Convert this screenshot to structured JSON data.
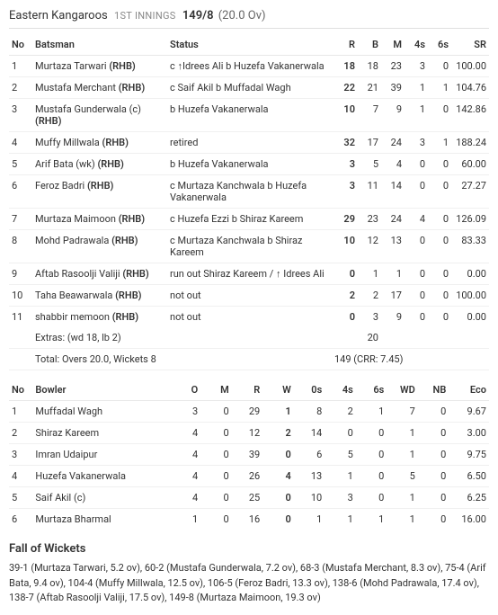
{
  "header": {
    "team": "Eastern Kangaroos",
    "innings_label": "1ST INNINGS",
    "score": "149/8",
    "overs": "(20.0 Ov)"
  },
  "batting": {
    "columns": [
      "No",
      "Batsman",
      "Status",
      "R",
      "B",
      "M",
      "4s",
      "6s",
      "SR"
    ],
    "rows": [
      {
        "no": "1",
        "name": "Murtaza Tarwari",
        "hand": "(RHB)",
        "status": "c ↑Idrees Ali b Huzefa Vakanerwala",
        "r": "18",
        "b": "18",
        "m": "23",
        "f4": "3",
        "f6": "0",
        "sr": "100.00"
      },
      {
        "no": "2",
        "name": "Mustafa Merchant",
        "hand": "(RHB)",
        "status": "c Saif Akil b Muffadal Wagh",
        "r": "22",
        "b": "21",
        "m": "39",
        "f4": "1",
        "f6": "1",
        "sr": "104.76"
      },
      {
        "no": "3",
        "name": "Mustafa Gunderwala (c)",
        "hand": "(RHB)",
        "status": "b Huzefa Vakanerwala",
        "r": "10",
        "b": "7",
        "m": "9",
        "f4": "1",
        "f6": "0",
        "sr": "142.86"
      },
      {
        "no": "4",
        "name": "Muffy Millwala",
        "hand": "(RHB)",
        "status": "retired",
        "r": "32",
        "b": "17",
        "m": "24",
        "f4": "3",
        "f6": "1",
        "sr": "188.24"
      },
      {
        "no": "5",
        "name": "Arif Bata (wk)",
        "hand": "(RHB)",
        "status": "b Huzefa Vakanerwala",
        "r": "3",
        "b": "5",
        "m": "4",
        "f4": "0",
        "f6": "0",
        "sr": "60.00"
      },
      {
        "no": "6",
        "name": "Feroz Badri",
        "hand": "(RHB)",
        "status": "c Murtaza Kanchwala b Huzefa Vakanerwala",
        "r": "3",
        "b": "11",
        "m": "14",
        "f4": "0",
        "f6": "0",
        "sr": "27.27"
      },
      {
        "no": "7",
        "name": "Murtaza Maimoon",
        "hand": "(RHB)",
        "status": "c Huzefa Ezzi b Shiraz Kareem",
        "r": "29",
        "b": "23",
        "m": "24",
        "f4": "4",
        "f6": "0",
        "sr": "126.09"
      },
      {
        "no": "8",
        "name": "Mohd Padrawala",
        "hand": "(RHB)",
        "status": "c Murtaza Kanchwala b Shiraz Kareem",
        "r": "10",
        "b": "12",
        "m": "13",
        "f4": "0",
        "f6": "0",
        "sr": "83.33"
      },
      {
        "no": "9",
        "name": "Aftab Rasoolji Valiji",
        "hand": "(RHB)",
        "status": "run out Shiraz Kareem / ↑ Idrees Ali",
        "r": "0",
        "b": "1",
        "m": "1",
        "f4": "0",
        "f6": "0",
        "sr": "0.00"
      },
      {
        "no": "10",
        "name": "Taha Beawarwala",
        "hand": "(RHB)",
        "status": "not out",
        "r": "2",
        "b": "2",
        "m": "17",
        "f4": "0",
        "f6": "0",
        "sr": "100.00"
      },
      {
        "no": "11",
        "name": "shabbir memoon",
        "hand": "(RHB)",
        "status": "not out",
        "r": "0",
        "b": "3",
        "m": "9",
        "f4": "0",
        "f6": "0",
        "sr": "0.00"
      }
    ],
    "extras_label": "Extras: (wd 18, lb 2)",
    "extras_value": "20",
    "total_label": "Total: Overs 20.0, Wickets 8",
    "total_value": "149 (CRR: 7.45)"
  },
  "bowling": {
    "columns": [
      "No",
      "Bowler",
      "O",
      "M",
      "R",
      "W",
      "0s",
      "4s",
      "6s",
      "WD",
      "NB",
      "Eco"
    ],
    "rows": [
      {
        "no": "1",
        "name": "Muffadal Wagh",
        "o": "3",
        "m": "0",
        "r": "29",
        "w": "1",
        "z": "8",
        "f4": "2",
        "f6": "1",
        "wd": "7",
        "nb": "0",
        "eco": "9.67"
      },
      {
        "no": "2",
        "name": "Shiraz Kareem",
        "o": "4",
        "m": "0",
        "r": "12",
        "w": "2",
        "z": "14",
        "f4": "0",
        "f6": "0",
        "wd": "1",
        "nb": "0",
        "eco": "3.00"
      },
      {
        "no": "3",
        "name": "Imran Udaipur",
        "o": "4",
        "m": "0",
        "r": "39",
        "w": "0",
        "z": "6",
        "f4": "5",
        "f6": "0",
        "wd": "1",
        "nb": "0",
        "eco": "9.75"
      },
      {
        "no": "4",
        "name": "Huzefa Vakanerwala",
        "o": "4",
        "m": "0",
        "r": "26",
        "w": "4",
        "z": "13",
        "f4": "1",
        "f6": "0",
        "wd": "5",
        "nb": "0",
        "eco": "6.50"
      },
      {
        "no": "5",
        "name": "Saif Akil (c)",
        "o": "4",
        "m": "0",
        "r": "25",
        "w": "0",
        "z": "10",
        "f4": "3",
        "f6": "0",
        "wd": "1",
        "nb": "0",
        "eco": "6.25"
      },
      {
        "no": "6",
        "name": "Murtaza Bharmal",
        "o": "1",
        "m": "0",
        "r": "16",
        "w": "0",
        "z": "1",
        "f4": "1",
        "f6": "1",
        "wd": "1",
        "nb": "0",
        "eco": "16.00"
      }
    ]
  },
  "fow": {
    "title": "Fall of Wickets",
    "text": "39-1 (Murtaza Tarwari, 5.2 ov), 60-2 (Mustafa Gunderwala, 7.2 ov), 68-3 (Mustafa Merchant, 8.3 ov), 75-4 (Arif Bata, 9.4 ov), 104-4 (Muffy Millwala, 12.5 ov), 106-5 (Feroz Badri, 13.3 ov), 138-6 (Mohd Padrawala, 17.4 ov), 138-7 (Aftab Rasoolji Valiji, 17.5 ov), 149-8 (Murtaza Maimoon, 19.3 ov)"
  }
}
